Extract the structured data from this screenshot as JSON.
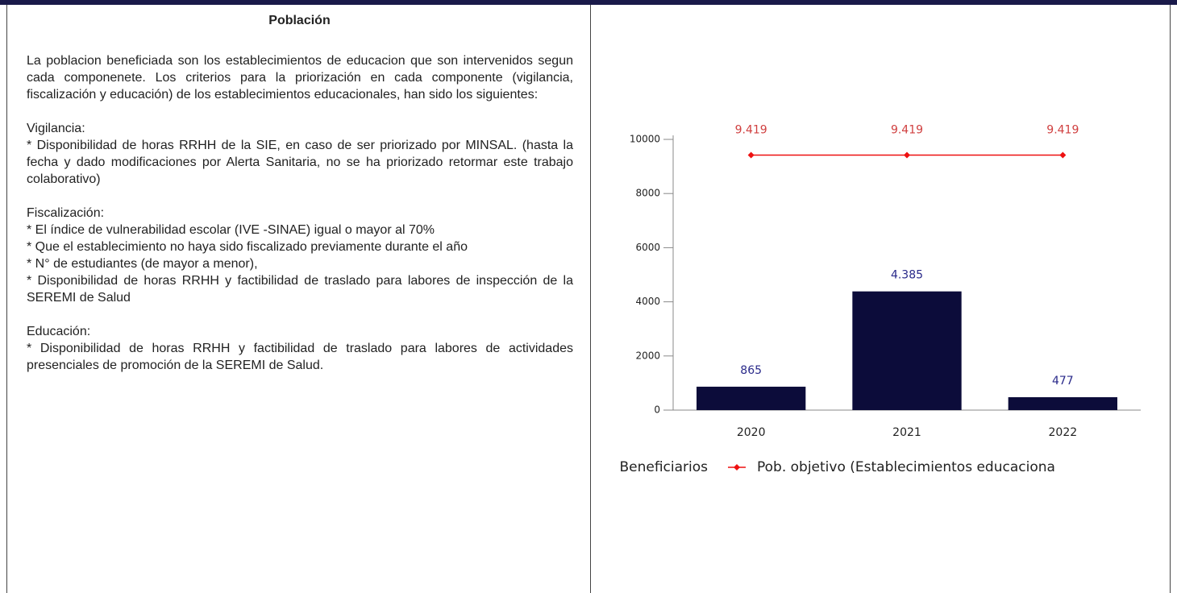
{
  "section": {
    "title": "Población",
    "blocks": [
      [
        "La poblacion beneficiada son los establecimientos de educacion que son intervenidos segun cada componenete. Los criterios para la priorización en cada componente (vigilancia, fiscalización y educación) de los establecimientos educacionales, han sido los siguientes:"
      ],
      [
        "Vigilancia:",
        "* Disponibilidad de horas RRHH de la SIE, en caso de ser priorizado por MINSAL. (hasta la fecha y dado modificaciones por Alerta Sanitaria, no se ha priorizado retormar este trabajo colaborativo)"
      ],
      [
        "Fiscalización:",
        "* El índice de vulnerabilidad escolar (IVE -SINAE) igual o mayor al 70%",
        "* Que el establecimiento no haya sido fiscalizado previamente durante el año",
        "* N° de estudiantes (de mayor a menor),",
        "* Disponibilidad de horas RRHH y factibilidad de traslado para labores de inspección de la SEREMI de Salud"
      ],
      [
        "Educación:",
        "* Disponibilidad de horas RRHH y factibilidad de traslado para labores de actividades presenciales de promoción de la SEREMI de Salud."
      ]
    ]
  },
  "chart_data": {
    "type": "bar_line",
    "categories": [
      "2020",
      "2021",
      "2022"
    ],
    "series": [
      {
        "name": "Beneficiarios",
        "type": "bar",
        "color": "#0c0c3a",
        "label_color": "#2a2a8a",
        "values": [
          865,
          4385,
          477
        ],
        "value_labels": [
          "865",
          "4.385",
          "477"
        ]
      },
      {
        "name": "Pob. objetivo (Establecimientos educaciona",
        "type": "line",
        "color": "#ee1111",
        "label_color": "#d04040",
        "values": [
          9419,
          9419,
          9419
        ],
        "value_labels": [
          "9.419",
          "9.419",
          "9.419"
        ]
      }
    ],
    "ylim": [
      0,
      10000
    ],
    "yticks": [
      0,
      2000,
      4000,
      6000,
      8000,
      10000
    ]
  }
}
